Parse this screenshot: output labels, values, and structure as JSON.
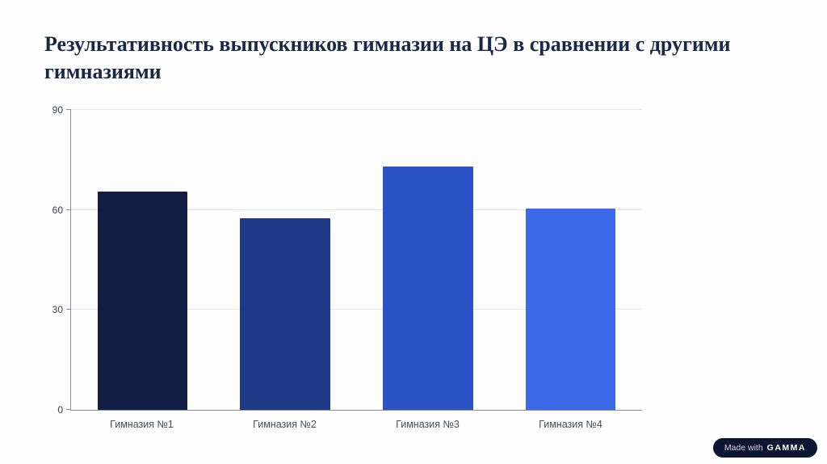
{
  "title": "Результативность выпускников гимназии на ЦЭ в сравнении с другими гимназиями",
  "chart_data": {
    "type": "bar",
    "title": "Результативность выпускников гимназии на ЦЭ в сравнении с другими гимназиями",
    "categories": [
      "Гимназия №1",
      "Гимназия №2",
      "Гимназия №3",
      "Гимназия №4"
    ],
    "values": [
      65.5,
      57.5,
      73,
      60.5
    ],
    "bar_colors": [
      "#111d43",
      "#1e3a86",
      "#2b53c6",
      "#3b69ea"
    ],
    "xlabel": "",
    "ylabel": "",
    "ylim": [
      0,
      90
    ],
    "yticks": [
      0,
      30,
      60,
      90
    ],
    "grid": "horizontal",
    "legend": "none"
  },
  "badge": {
    "prefix": "Made with",
    "brand": "GAMMA"
  }
}
